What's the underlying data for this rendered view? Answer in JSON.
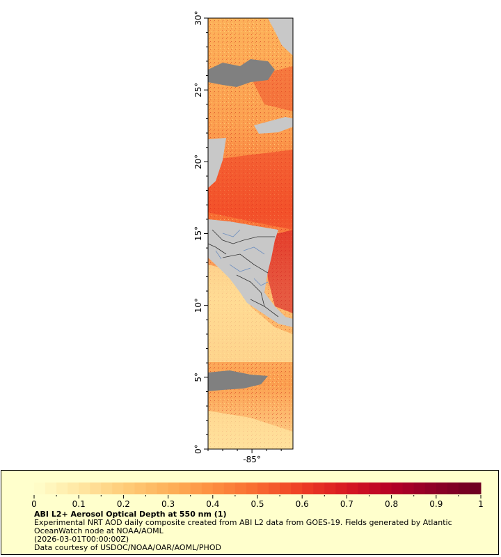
{
  "map": {
    "lat_ticks": [
      "0°",
      "5°",
      "10°",
      "15°",
      "20°",
      "25°",
      "30°"
    ],
    "lat_values": [
      0,
      5,
      10,
      15,
      20,
      25,
      30
    ],
    "lon_ticks": [
      "-85°"
    ],
    "lon_values": [
      -85
    ],
    "lat_range": [
      0,
      30
    ],
    "lon_range": [
      -88,
      -82.2
    ]
  },
  "colors": {
    "land": "#c8c8c8",
    "nodata": "#808080",
    "borders": "#333333",
    "rivers": "#6f8fbf"
  },
  "legend": {
    "ticks": [
      "0",
      "0.1",
      "0.2",
      "0.3",
      "0.4",
      "0.5",
      "0.6",
      "0.7",
      "0.8",
      "0.9",
      "1"
    ],
    "min": 0,
    "max": 1,
    "colors": [
      "#ffffcc",
      "#ffe7a3",
      "#fecd7a",
      "#fdb25a",
      "#fd8f40",
      "#f86a30",
      "#ee3d24",
      "#d71821",
      "#b50026",
      "#8c0026",
      "#6b0020"
    ],
    "title": "ABI L2+ Aerosol Optical Depth at 550 nm (1)",
    "line1": "Experimental NRT AOD daily composite created from ABI L2 data from GOES-19. Fields generated by Atlantic",
    "line2": "OceanWatch node at NOAA/AOML",
    "line3": "(2026-03-01T00:00:00Z)",
    "line4": "Data courtesy of USDOC/NOAA/OAR/AOML/PHOD"
  }
}
